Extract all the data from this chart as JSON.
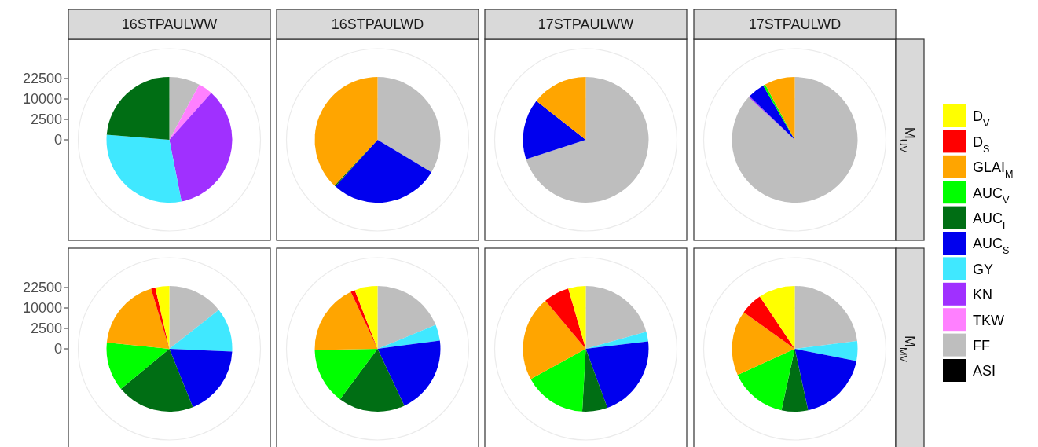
{
  "chart_data": [
    {
      "type": "pie",
      "title": "16STPAULWW",
      "annotations": [
        "22500",
        "10000",
        "2500",
        "0"
      ],
      "categories": [
        "D$_{V}$",
        "D$_{S}$",
        "GLAI$_{M}$",
        "AUC$_{V}$",
        "AUC$_{F}$",
        "AUC$_{S}$",
        "GY",
        "KN",
        "TKW",
        "FF",
        "ASI"
      ],
      "values": [
        0,
        0,
        0,
        0,
        23.7,
        0,
        29.4,
        35.3,
        3.7,
        7.9,
        0
      ],
      "colors": [
        "#ffff00",
        "#ff0000",
        "#ffa500",
        "#00ff00",
        "#006e14",
        "#0000ee",
        "#40e8ff",
        "#a030ff",
        "#ff80ff",
        "#bebebe",
        "#000000"
      ],
      "grid": true,
      "legend": "right"
    },
    {
      "type": "pie",
      "title": "16STPAULWD",
      "categories": [
        null,
        null,
        null,
        null,
        null,
        null,
        null,
        null,
        null,
        null,
        null
      ],
      "values": [
        0,
        0,
        38.0,
        0,
        0.3,
        28.1,
        0,
        0,
        0,
        33.6,
        0
      ],
      "colors": [
        "#ffff00",
        "#ff0000",
        "#ffa500",
        "#00ff00",
        "#006e14",
        "#0000ee",
        "#40e8ff",
        "#a030ff",
        "#ff80ff",
        "#bebebe",
        "#000000"
      ],
      "grid": true
    },
    {
      "type": "pie",
      "title": "17STPAULWW",
      "categories": [
        null,
        null,
        null,
        null,
        null,
        null,
        null,
        null,
        null,
        null,
        null
      ],
      "values": [
        0,
        0,
        14.4,
        0,
        0,
        15.6,
        0,
        0,
        0,
        70.0,
        0
      ],
      "colors": [
        "#ffff00",
        "#ff0000",
        "#ffa500",
        "#00ff00",
        "#006e14",
        "#0000ee",
        "#40e8ff",
        "#a030ff",
        "#ff80ff",
        "#bebebe",
        "#000000"
      ],
      "grid": true
    },
    {
      "type": "pie",
      "title": "17STPAULWD",
      "subtitle": "M$_{UV}$",
      "categories": [
        null,
        null,
        null,
        null,
        null,
        null,
        null,
        null,
        null,
        null,
        null
      ],
      "values": [
        0,
        0,
        7.8,
        0.6,
        0,
        4.4,
        0,
        0.3,
        0,
        86.9,
        0
      ],
      "colors": [
        "#ffff00",
        "#ff0000",
        "#ffa500",
        "#00ff00",
        "#006e14",
        "#0000ee",
        "#40e8ff",
        "#a030ff",
        "#ff80ff",
        "#bebebe",
        "#000000"
      ],
      "grid": true
    },
    {
      "type": "pie",
      "annotations": [
        "22500",
        "10000",
        "2500",
        "0"
      ],
      "categories": [
        null,
        null,
        null,
        null,
        null,
        null,
        null,
        null,
        null,
        null,
        null
      ],
      "values": [
        3.6,
        1.1,
        18.7,
        12.6,
        20.1,
        18.2,
        11.3,
        0,
        0,
        14.4,
        0
      ],
      "colors": [
        "#ffff00",
        "#ff0000",
        "#ffa500",
        "#00ff00",
        "#006e14",
        "#0000ee",
        "#40e8ff",
        "#a030ff",
        "#ff80ff",
        "#bebebe",
        "#000000"
      ],
      "grid": true
    },
    {
      "type": "pie",
      "categories": [
        null,
        null,
        null,
        null,
        null,
        null,
        null,
        null,
        null,
        null,
        null
      ],
      "values": [
        5.9,
        1.1,
        18.3,
        14.5,
        17.2,
        20.1,
        4.1,
        0,
        0,
        18.8,
        0
      ],
      "colors": [
        "#ffff00",
        "#ff0000",
        "#ffa500",
        "#00ff00",
        "#006e14",
        "#0000ee",
        "#40e8ff",
        "#a030ff",
        "#ff80ff",
        "#bebebe",
        "#000000"
      ],
      "grid": true
    },
    {
      "type": "pie",
      "categories": [
        null,
        null,
        null,
        null,
        null,
        null,
        null,
        null,
        null,
        null,
        null
      ],
      "values": [
        4.5,
        6.6,
        21.9,
        16.1,
        6.5,
        21.3,
        2.5,
        0,
        0,
        20.6,
        0
      ],
      "colors": [
        "#ffff00",
        "#ff0000",
        "#ffa500",
        "#00ff00",
        "#006e14",
        "#0000ee",
        "#40e8ff",
        "#a030ff",
        "#ff80ff",
        "#bebebe",
        "#000000"
      ],
      "grid": true
    },
    {
      "type": "pie",
      "subtitle": "M$_{MV}$",
      "categories": [
        null,
        null,
        null,
        null,
        null,
        null,
        null,
        null,
        null,
        null,
        null
      ],
      "values": [
        9.4,
        5.7,
        16.7,
        14.8,
        6.8,
        18.5,
        5.1,
        0,
        0,
        23.0,
        0
      ],
      "colors": [
        "#ffff00",
        "#ff0000",
        "#ffa500",
        "#00ff00",
        "#006e14",
        "#0000ee",
        "#40e8ff",
        "#a030ff",
        "#ff80ff",
        "#bebebe",
        "#000000"
      ],
      "grid": true
    }
  ]
}
